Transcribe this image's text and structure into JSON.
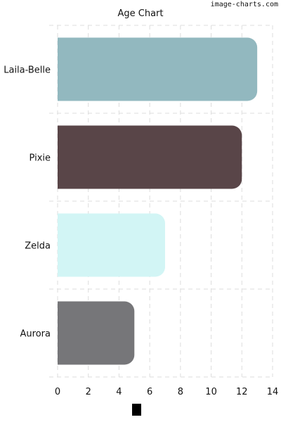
{
  "watermark": "image-charts.com",
  "chart_data": {
    "type": "bar",
    "orientation": "horizontal",
    "title": "Age Chart",
    "xlabel": "",
    "ylabel": "",
    "categories": [
      "Laila-Belle",
      "Pixie",
      "Zelda",
      "Aurora"
    ],
    "values": [
      13,
      12,
      7,
      5
    ],
    "colors": [
      "#92b8bf",
      "#594548",
      "#d2f5f5",
      "#767679"
    ],
    "xlim": [
      0,
      14
    ],
    "xticks": [
      0,
      2,
      4,
      6,
      8,
      10,
      12,
      14
    ],
    "grid": true,
    "legend": {
      "position": "bottom",
      "swatch_color": "#000000"
    }
  }
}
